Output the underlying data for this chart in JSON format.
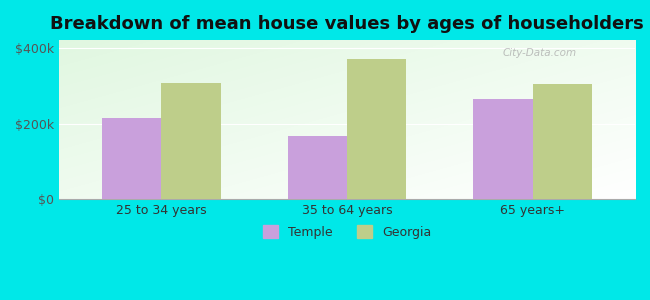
{
  "title": "Breakdown of mean house values by ages of householders",
  "categories": [
    "25 to 34 years",
    "35 to 64 years",
    "65 years+"
  ],
  "temple_values": [
    215000,
    168000,
    265000
  ],
  "georgia_values": [
    308000,
    370000,
    305000
  ],
  "temple_color": "#c9a0dc",
  "georgia_color": "#bece8a",
  "background_color": "#00e8e8",
  "ylim": [
    0,
    420000
  ],
  "yticks": [
    0,
    200000,
    400000
  ],
  "ytick_labels": [
    "$0",
    "$200k",
    "$400k"
  ],
  "legend_labels": [
    "Temple",
    "Georgia"
  ],
  "bar_width": 0.32,
  "title_fontsize": 13,
  "tick_fontsize": 9,
  "legend_fontsize": 9
}
